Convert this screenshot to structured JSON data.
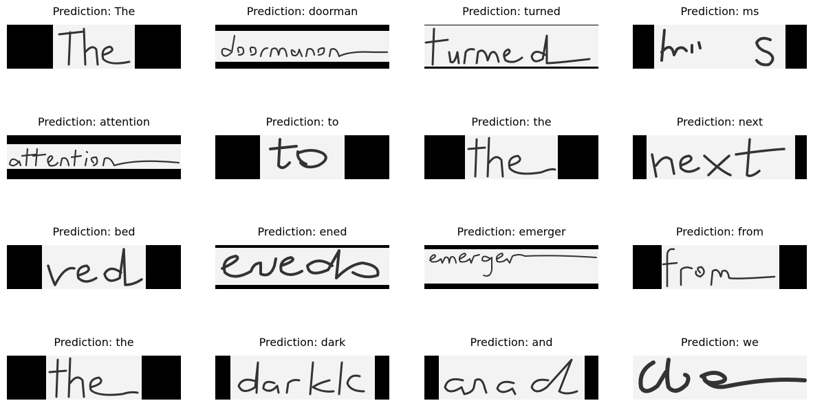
{
  "title_prefix": "Prediction: ",
  "items": [
    {
      "prediction": "The"
    },
    {
      "prediction": "doorman"
    },
    {
      "prediction": "turned"
    },
    {
      "prediction": "ms"
    },
    {
      "prediction": "attention"
    },
    {
      "prediction": "to"
    },
    {
      "prediction": "the"
    },
    {
      "prediction": "next"
    },
    {
      "prediction": "bed"
    },
    {
      "prediction": "ened"
    },
    {
      "prediction": "emerger"
    },
    {
      "prediction": "from"
    },
    {
      "prediction": "the"
    },
    {
      "prediction": "dark"
    },
    {
      "prediction": "and"
    },
    {
      "prediction": "we"
    }
  ],
  "colors": {
    "background": "#ffffff",
    "padding_black": "#000000",
    "paper": "#f3f3f3",
    "ink": "#333333"
  }
}
